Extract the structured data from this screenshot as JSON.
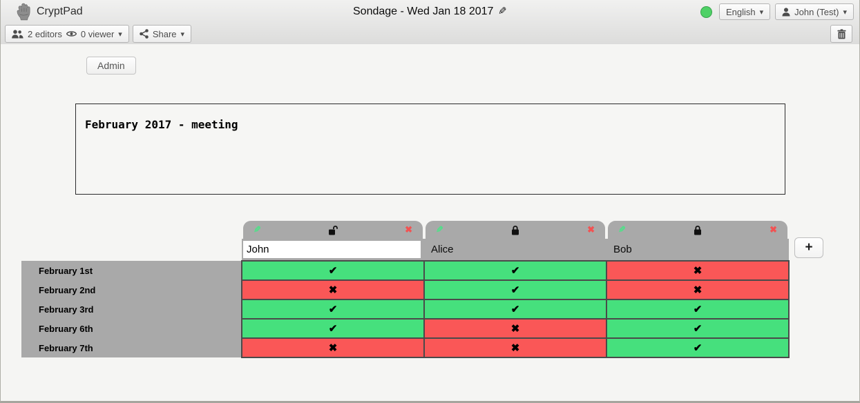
{
  "toolbar": {
    "app_name": "CryptPad",
    "doc_title": "Sondage - Wed Jan 18 2017",
    "edit_icon": "✎",
    "status_color": "#4fd166",
    "language_button": "English",
    "user_button": "John (Test)",
    "editors_label": "2 editors",
    "viewers_label": "0 viewer",
    "share_label": "Share",
    "caret": "▾"
  },
  "admin_button_label": "Admin",
  "description_text": "February 2017 - meeting",
  "poll": {
    "add_column_label": "+",
    "edit_icon": "✎",
    "remove_icon": "✖",
    "edit_icon_color": "#55dd8a",
    "tab_gray": "#a9a9a9",
    "yes_color": "#46e07d",
    "no_color": "#fa5757",
    "yes_glyph": "✔",
    "no_glyph": "✖",
    "columns": [
      {
        "name": "John",
        "editable": true,
        "locked": false
      },
      {
        "name": "Alice",
        "editable": false,
        "locked": true
      },
      {
        "name": "Bob",
        "editable": false,
        "locked": true
      }
    ],
    "rows": [
      {
        "label": "February 1st",
        "votes": [
          "yes",
          "yes",
          "no"
        ]
      },
      {
        "label": "February 2nd",
        "votes": [
          "no",
          "yes",
          "no"
        ]
      },
      {
        "label": "February 3rd",
        "votes": [
          "yes",
          "yes",
          "yes"
        ]
      },
      {
        "label": "February 6th",
        "votes": [
          "yes",
          "no",
          "yes"
        ]
      },
      {
        "label": "February 7th",
        "votes": [
          "no",
          "no",
          "yes"
        ]
      }
    ]
  }
}
